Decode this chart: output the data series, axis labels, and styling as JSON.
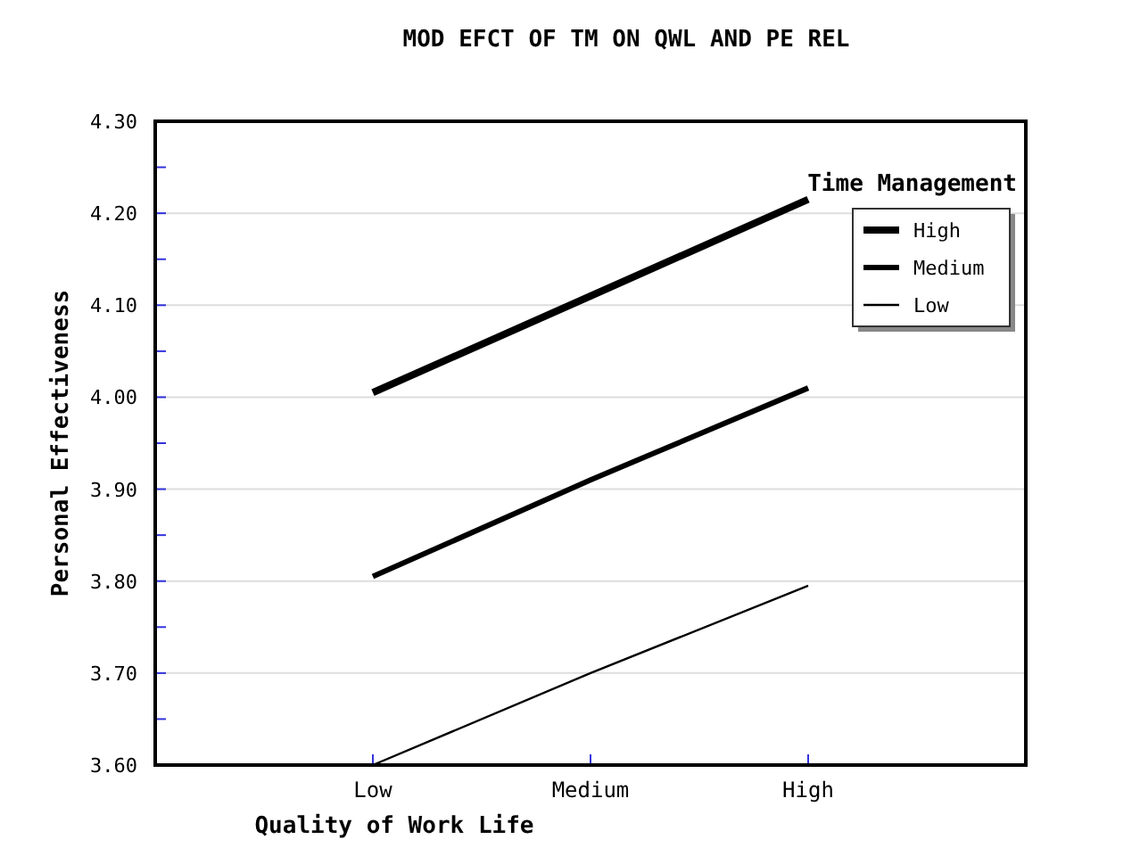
{
  "chart_data": {
    "type": "line",
    "title": "MOD EFCT OF TM ON QWL AND PE REL",
    "xlabel": "Quality of Work Life",
    "ylabel": "Personal Effectiveness",
    "legend_title": "Time Management",
    "categories": [
      "Low",
      "Medium",
      "High"
    ],
    "series": [
      {
        "name": "High",
        "color": "#000000",
        "values": [
          4.005,
          4.11,
          4.215
        ]
      },
      {
        "name": "Medium",
        "color": "#000000",
        "values": [
          3.805,
          3.91,
          4.01
        ]
      },
      {
        "name": "Low",
        "color": "#000000",
        "values": [
          3.6,
          3.7,
          3.795
        ]
      }
    ],
    "ylim": [
      3.6,
      4.3
    ],
    "yticks": [
      {
        "value": 3.6,
        "label": "3.60"
      },
      {
        "value": 3.65,
        "label": null
      },
      {
        "value": 3.7,
        "label": "3.70"
      },
      {
        "value": 3.75,
        "label": null
      },
      {
        "value": 3.8,
        "label": "3.80"
      },
      {
        "value": 3.85,
        "label": null
      },
      {
        "value": 3.9,
        "label": "3.90"
      },
      {
        "value": 3.95,
        "label": null
      },
      {
        "value": 4.0,
        "label": "4.00"
      },
      {
        "value": 4.05,
        "label": null
      },
      {
        "value": 4.1,
        "label": "4.10"
      },
      {
        "value": 4.15,
        "label": null
      },
      {
        "value": 4.2,
        "label": "4.20"
      },
      {
        "value": 4.25,
        "label": null
      },
      {
        "value": 4.3,
        "label": "4.30"
      }
    ],
    "grid": "y",
    "legend": "top right",
    "marker": "none",
    "line_style": "solid"
  }
}
